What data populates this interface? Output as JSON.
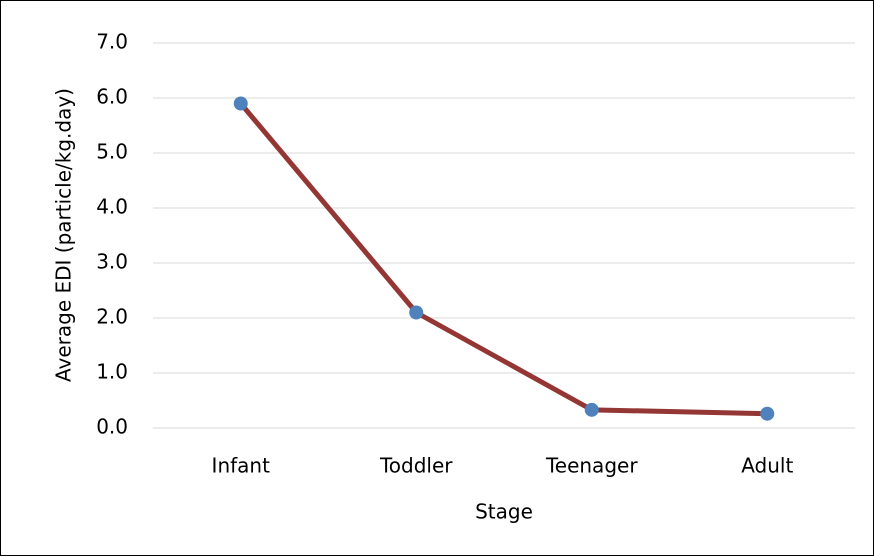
{
  "chart_data": {
    "type": "line",
    "categories": [
      "Infant",
      "Toddler",
      "Teenager",
      "Adult"
    ],
    "series": [
      {
        "name": "Average EDI",
        "color": "#943634",
        "marker_color": "#4f81bd",
        "values": [
          5.9,
          2.1,
          0.33,
          0.26
        ]
      }
    ],
    "xlabel": "Stage",
    "ylabel": "Average EDI (particle/kg.day)",
    "ylim": [
      0,
      7
    ],
    "yticks": [
      {
        "value": 0,
        "label": "0.0"
      },
      {
        "value": 1,
        "label": "1.0"
      },
      {
        "value": 2,
        "label": "2.0"
      },
      {
        "value": 3,
        "label": "3.0"
      },
      {
        "value": 4,
        "label": "4.0"
      },
      {
        "value": 5,
        "label": "5.0"
      },
      {
        "value": 6,
        "label": "6.0"
      },
      {
        "value": 7,
        "label": "7.0"
      }
    ],
    "grid": true
  }
}
